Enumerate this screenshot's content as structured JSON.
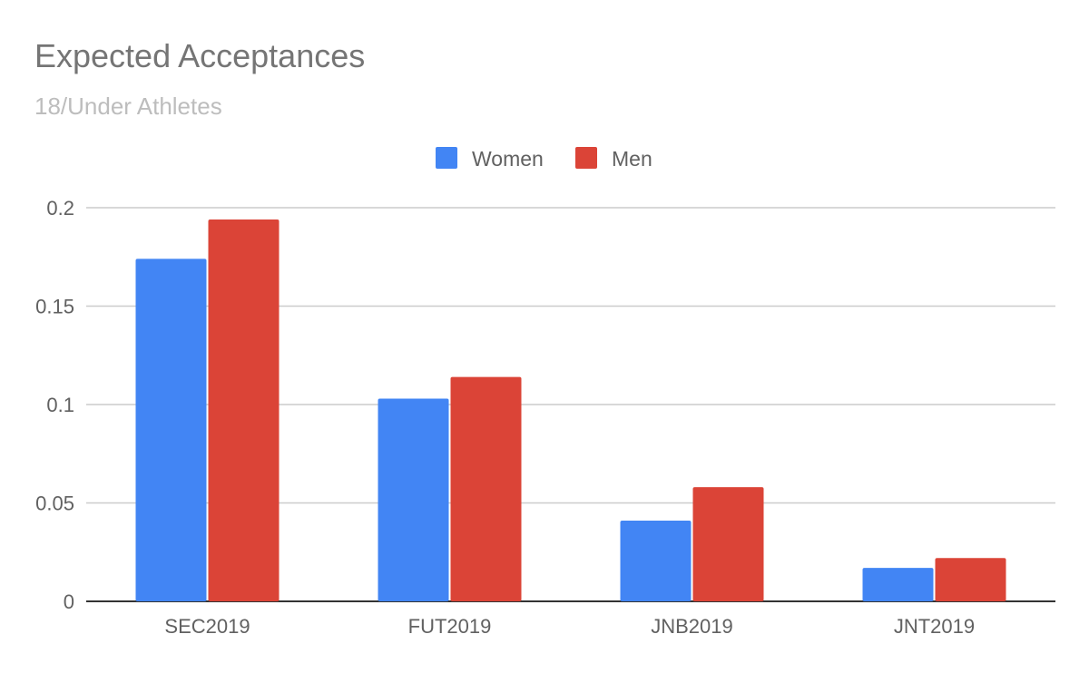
{
  "chart_data": {
    "type": "bar",
    "title": "Expected Acceptances",
    "subtitle": "18/Under Athletes",
    "xlabel": "",
    "ylabel": "",
    "categories": [
      "SEC2019",
      "FUT2019",
      "JNB2019",
      "JNT2019"
    ],
    "series": [
      {
        "name": "Women",
        "color": "#4285f4",
        "values": [
          0.174,
          0.103,
          0.041,
          0.017
        ]
      },
      {
        "name": "Men",
        "color": "#db4437",
        "values": [
          0.194,
          0.114,
          0.058,
          0.022
        ]
      }
    ],
    "ylim": [
      0,
      0.2
    ],
    "yticks": [
      "0",
      "0.05",
      "0.1",
      "0.15",
      "0.2"
    ],
    "ytick_values": [
      0,
      0.05,
      0.1,
      0.15,
      0.2
    ],
    "grid": true,
    "legend_position": "top-center"
  }
}
